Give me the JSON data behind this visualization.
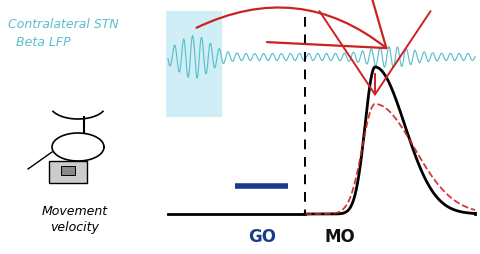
{
  "bg_color": "#ffffff",
  "lfp_color": "#5bbfcc",
  "highlight_rect_color": "#d0eef5",
  "velocity_curve_color": "#000000",
  "velocity_dashed_color": "#cc2222",
  "go_bar_color": "#1a3a8a",
  "arrow_color": "#cc2222",
  "go_label_color": "#1a3a8a",
  "mo_label_color": "#111111",
  "title_color": "#5bbfcc",
  "title_text": "Contralateral STN\n  Beta LFP",
  "go_label": "GO",
  "mo_label": "MO",
  "movement_label": "Movement\nvelocity",
  "fig_w": 4.8,
  "fig_h": 2.55,
  "dpi": 100
}
